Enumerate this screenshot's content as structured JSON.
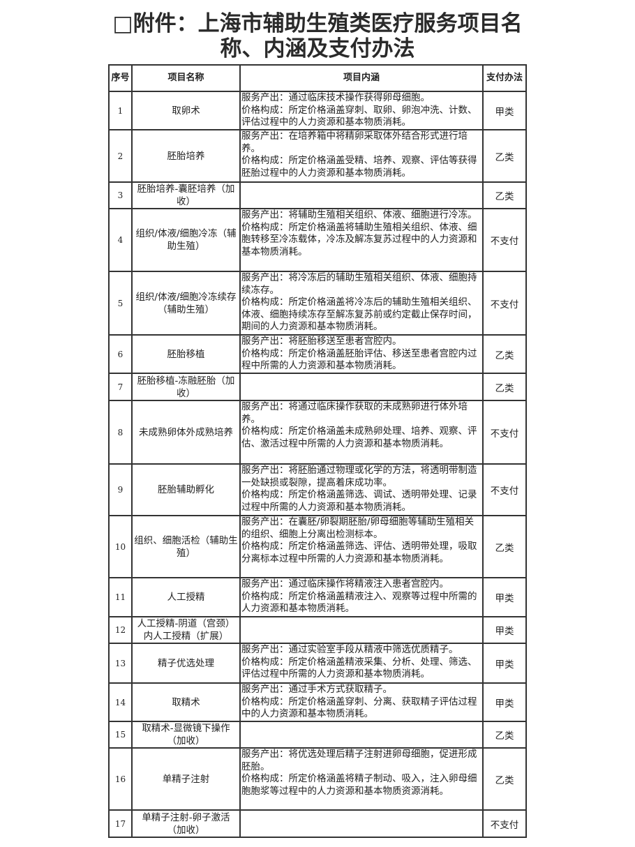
{
  "title": "□附件：上海市辅助生殖类医疗服务项目名称、内涵及支付办法",
  "table": {
    "headers": {
      "seq": "序号",
      "name": "项目名称",
      "content": "项目内涵",
      "pay": "支付办法"
    },
    "rows": [
      {
        "seq": "1",
        "name": "取卵术",
        "output": "服务产出：通过临床技术操作获得卵母细胞。",
        "price": "价格构成：所定价格涵盖穿刺、取卵、卵泡冲洗、计数、评估过程中的人力资源和基本物质消耗。",
        "pay": "甲类"
      },
      {
        "seq": "2",
        "name": "胚胎培养",
        "output": "服务产出：在培养箱中将精卵采取体外结合形式进行培养。",
        "price": "价格构成：所定价格涵盖受精、培养、观察、评估等获得胚胎过程中的人力资源和基本物质消耗。",
        "pay": "乙类"
      },
      {
        "seq": "3",
        "name": "胚胎培养-囊胚培养（加收）",
        "output": "",
        "price": "",
        "pay": "乙类"
      },
      {
        "seq": "4",
        "name": "组织/体液/细胞冷冻（辅助生殖）",
        "output": "服务产出：将辅助生殖相关组织、体液、细胞进行冷冻。",
        "price": "价格构成：所定价格涵盖将辅助生殖相关组织、体液、细胞转移至冷冻载体，冷冻及解冻复苏过程中的人力资源和基本物质消耗。",
        "pay": "不支付"
      },
      {
        "seq": "5",
        "name": "组织/体液/细胞冷冻续存（辅助生殖）",
        "output": "服务产出：将冷冻后的辅助生殖相关组织、体液、细胞持续冻存。",
        "price": "价格构成：所定价格涵盖将冷冻后的辅助生殖相关组织、体液、细胞持续冻存至解冻复苏前或约定截止保存时间，期间的人力资源和基本物质消耗。",
        "pay": "不支付"
      },
      {
        "seq": "6",
        "name": "胚胎移植",
        "output": "服务产出：将胚胎移送至患者宫腔内。",
        "price": "价格构成：所定价格涵盖胚胎评估、移送至患者宫腔内过程中所需的人力资源和基本物质消耗。",
        "pay": "乙类"
      },
      {
        "seq": "7",
        "name": "胚胎移植-冻融胚胎（加收）",
        "output": "",
        "price": "",
        "pay": "乙类"
      },
      {
        "seq": "8",
        "name": "未成熟卵体外成熟培养",
        "output": "服务产出：将通过临床操作获取的未成熟卵进行体外培养。",
        "price": "价格构成：所定价格涵盖未成熟卵处理、培养、观察、评估、激活过程中所需的人力资源和基本物质消耗。",
        "pay": "不支付"
      },
      {
        "seq": "9",
        "name": "胚胎辅助孵化",
        "output": "服务产出：将胚胎通过物理或化学的方法，将透明带制造一处缺损或裂隙，提高着床成功率。",
        "price": "价格构成：所定价格涵盖筛选、调试、透明带处理、记录过程中所需的人力资源和基本物质消耗。",
        "pay": "不支付"
      },
      {
        "seq": "10",
        "name": "组织、细胞活检（辅助生殖）",
        "output": "服务产出：在囊胚/卵裂期胚胎/卵母细胞等辅助生殖相关的组织、细胞上分离出检测标本。",
        "price": "价格构成：所定价格涵盖筛选、评估、透明带处理，吸取分离标本过程中所需的人力资源和基本物质消耗。",
        "pay": "乙类"
      },
      {
        "seq": "11",
        "name": "人工授精",
        "output": "服务产出：通过临床操作将精液注入患者宫腔内。",
        "price": "价格构成：所定价格涵盖精液注入、观察等过程中所需的人力资源和基本物质消耗。",
        "pay": "甲类"
      },
      {
        "seq": "12",
        "name": "人工授精-阴道（宫颈）内人工授精（扩展）",
        "output": "",
        "price": "",
        "pay": "甲类"
      },
      {
        "seq": "13",
        "name": "精子优选处理",
        "output": "服务产出：通过实验室手段从精液中筛选优质精子。",
        "price": "价格构成：所定价格涵盖精液采集、分析、处理、筛选、评估过程中所需的人力资源和基本物质消耗。",
        "pay": "甲类"
      },
      {
        "seq": "14",
        "name": "取精术",
        "output": "服务产出：通过手术方式获取精子。",
        "price": "价格构成：所定价格涵盖穿刺、分离、获取精子评估过程中的人力资源和基本物质消耗。",
        "pay": "甲类"
      },
      {
        "seq": "15",
        "name": "取精术-显微镜下操作（加收）",
        "output": "",
        "price": "",
        "pay": "乙类"
      },
      {
        "seq": "16",
        "name": "单精子注射",
        "output": "服务产出：将优选处理后精子注射进卵母细胞，促进形成胚胎。",
        "price": "价格构成：所定价格涵盖将精子制动、吸入，注入卵母细胞胞浆等过程中的人力资源和基本物质资源消耗。",
        "pay": "乙类"
      },
      {
        "seq": "17",
        "name": "单精子注射-卵子激活（加收）",
        "output": "",
        "price": "",
        "pay": "不支付"
      }
    ]
  }
}
